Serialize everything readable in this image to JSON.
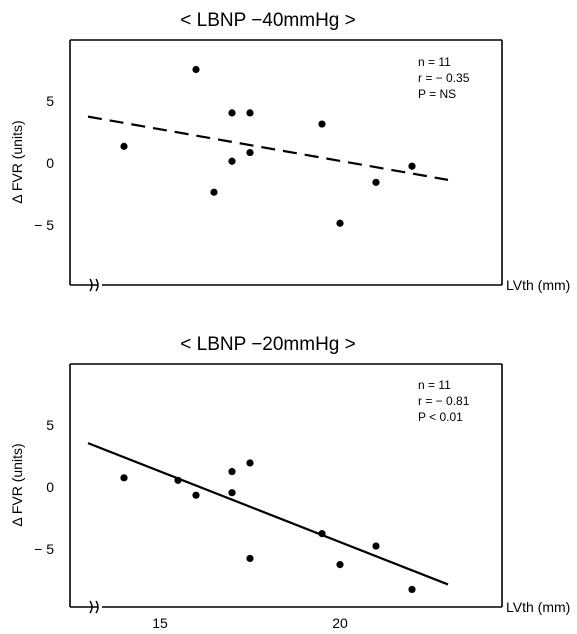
{
  "chart_data": [
    {
      "type": "scatter",
      "title": "< LBNP  −40mmHg >",
      "xlabel": "LVth  (mm)",
      "ylabel": "Δ FVR (units)",
      "xlim": [
        12.5,
        24.5
      ],
      "ylim": [
        -9.5,
        9.5
      ],
      "xticks": [],
      "yticks": [
        5,
        0,
        -5
      ],
      "ytick_labels": [
        "5",
        "0",
        "− 5"
      ],
      "grid": false,
      "stats": [
        "n = 11",
        "r = − 0.35",
        "P = NS"
      ],
      "points": [
        {
          "x": 14.0,
          "y": 1.3
        },
        {
          "x": 16.0,
          "y": 7.5
        },
        {
          "x": 16.5,
          "y": -2.4
        },
        {
          "x": 17.0,
          "y": 4.0
        },
        {
          "x": 17.0,
          "y": 0.1
        },
        {
          "x": 17.5,
          "y": 4.0
        },
        {
          "x": 17.5,
          "y": 0.8
        },
        {
          "x": 19.5,
          "y": 3.1
        },
        {
          "x": 20.0,
          "y": -4.9
        },
        {
          "x": 21.0,
          "y": -1.6
        },
        {
          "x": 22.0,
          "y": -0.3
        }
      ],
      "regression": {
        "style": "dashed",
        "x": [
          13.0,
          23.0
        ],
        "y": [
          3.7,
          -1.4
        ]
      }
    },
    {
      "type": "scatter",
      "title": "< LBNP  −20mmHg >",
      "xlabel": "LVth  (mm)",
      "ylabel": "Δ FVR (units)",
      "xlim": [
        12.5,
        24.5
      ],
      "ylim": [
        -9.5,
        9.5
      ],
      "xticks": [
        15,
        20
      ],
      "yticks": [
        5,
        0,
        -5
      ],
      "ytick_labels": [
        "5",
        "0",
        "− 5"
      ],
      "grid": false,
      "stats": [
        "n = 11",
        "r = − 0.81",
        "P < 0.01"
      ],
      "points": [
        {
          "x": 14.0,
          "y": 0.7
        },
        {
          "x": 15.5,
          "y": 0.5
        },
        {
          "x": 16.0,
          "y": -0.7
        },
        {
          "x": 17.0,
          "y": 1.2
        },
        {
          "x": 17.0,
          "y": -0.5
        },
        {
          "x": 17.5,
          "y": 1.9
        },
        {
          "x": 17.5,
          "y": -5.8
        },
        {
          "x": 19.5,
          "y": -3.8
        },
        {
          "x": 20.0,
          "y": -6.3
        },
        {
          "x": 21.0,
          "y": -4.8
        },
        {
          "x": 22.0,
          "y": -8.3
        }
      ],
      "regression": {
        "style": "solid",
        "x": [
          13.0,
          23.0
        ],
        "y": [
          3.5,
          -7.9
        ]
      }
    }
  ]
}
